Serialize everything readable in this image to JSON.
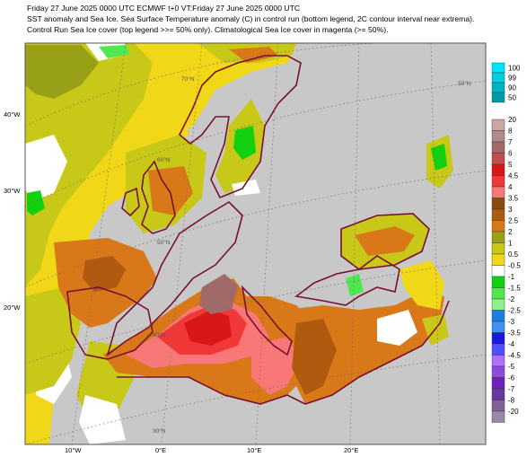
{
  "header": {
    "line1": "Friday 27 June 2025 0000 UTC  ECMWF  t+0  VT:Friday 27 June 2025 0000 UTC",
    "line2": "SST anomaly and Sea Ice. Sea Surface Temperature anomaly (C) in control run (bottom legend, 2C contour interval near extrema).",
    "line3": "Control Run Sea Ice cover (top legend >>= 50% only). Climatological Sea Ice cover in magenta (>= 50%)."
  },
  "ice_legend": {
    "labels": [
      "100",
      "99",
      "90",
      "50"
    ],
    "colors": [
      "#00e5ff",
      "#00cfe0",
      "#00b4c4",
      "#009aa8"
    ]
  },
  "sst_legend": {
    "labels": [
      "20",
      "8",
      "7",
      "6",
      "5",
      "4.5",
      "4",
      "3.5",
      "3",
      "2.5",
      "2",
      "1",
      "0.5",
      "-0.5",
      "-1",
      "-1.5",
      "-2",
      "-2.5",
      "-3",
      "-3.5",
      "-4",
      "-4.5",
      "-5",
      "-6",
      "-7",
      "-8",
      "-20"
    ],
    "colors": [
      "#c8a8a0",
      "#b08a88",
      "#a06a68",
      "#c05050",
      "#d81818",
      "#f03838",
      "#f87878",
      "#8a4a10",
      "#b05a10",
      "#d87818",
      "#98a018",
      "#c8c818",
      "#f0d818",
      "#ffffff",
      "#10d010",
      "#50e850",
      "#90f090",
      "#1880e0",
      "#4090f8",
      "#1818e0",
      "#5050f8",
      "#b070f8",
      "#9048e0",
      "#7020c0",
      "#6838a0",
      "#806098",
      "#9a88a8"
    ]
  },
  "map": {
    "lon_labels": [
      "10°W",
      "0°E",
      "10°E",
      "20°E"
    ],
    "lat_labels_left": [
      "40°W",
      "30°W",
      "20°W"
    ],
    "lat_labels_inner": [
      "70°N",
      "60°N",
      "50°N",
      "40°N",
      "30°N",
      "50°N"
    ],
    "colors": {
      "land": "#c8c8c8",
      "coast": "#7a1030",
      "grid": "#8a6060",
      "neutral": "#ffffff",
      "yellow": "#f0d818",
      "olive": "#c8c818",
      "olive_dark": "#98a018",
      "orange": "#d87818",
      "brown": "#b05a10",
      "pink": "#f87878",
      "red": "#f03838",
      "dark_red": "#d81818",
      "rose": "#a06a68",
      "green": "#10d010",
      "light_green": "#50e850"
    }
  }
}
